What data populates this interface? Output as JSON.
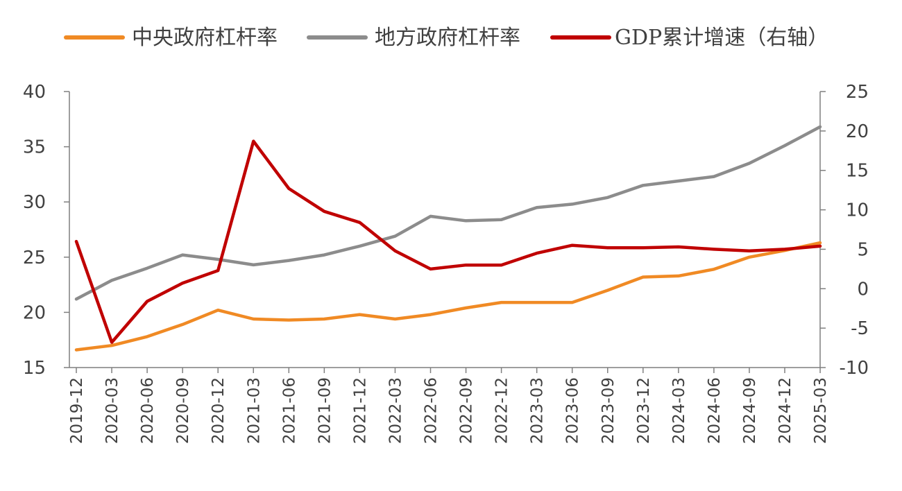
{
  "chart_data": {
    "type": "line",
    "title": "",
    "categories": [
      "2019-12",
      "2020-03",
      "2020-06",
      "2020-09",
      "2020-12",
      "2021-03",
      "2021-06",
      "2021-09",
      "2021-12",
      "2022-03",
      "2022-06",
      "2022-09",
      "2022-12",
      "2023-03",
      "2023-06",
      "2023-09",
      "2023-12",
      "2024-03",
      "2024-06",
      "2024-09",
      "2024-12",
      "2025-03"
    ],
    "y_left": {
      "ylim": [
        15,
        40
      ],
      "ticks": [
        15,
        20,
        25,
        30,
        35,
        40
      ]
    },
    "y_right": {
      "ylim": [
        -10,
        25
      ],
      "ticks": [
        -10,
        -5,
        0,
        5,
        10,
        15,
        20,
        25
      ]
    },
    "legend_position": "top",
    "series": [
      {
        "name": "中央政府杠杆率",
        "axis": "left",
        "color": "#f08a24",
        "values": [
          16.6,
          17.0,
          17.8,
          18.9,
          20.2,
          19.4,
          19.3,
          19.4,
          19.8,
          19.4,
          19.8,
          20.4,
          20.9,
          20.9,
          20.9,
          22.0,
          23.2,
          23.3,
          23.9,
          25.0,
          25.6,
          26.3
        ]
      },
      {
        "name": "地方政府杠杆率",
        "axis": "left",
        "color": "#8c8c8c",
        "values": [
          21.2,
          22.9,
          24.0,
          25.2,
          24.8,
          24.3,
          24.7,
          25.2,
          26.0,
          26.9,
          28.7,
          28.3,
          28.4,
          29.5,
          29.8,
          30.4,
          31.5,
          31.9,
          32.3,
          33.5,
          35.1,
          36.8
        ]
      },
      {
        "name": "GDP累计增速（右轴）",
        "axis": "right",
        "color": "#c00000",
        "values": [
          6.0,
          -6.8,
          -1.6,
          0.7,
          2.3,
          18.7,
          12.7,
          9.8,
          8.4,
          4.8,
          2.5,
          3.0,
          3.0,
          4.5,
          5.5,
          5.2,
          5.2,
          5.3,
          5.0,
          4.8,
          5.0,
          5.4
        ]
      }
    ]
  }
}
